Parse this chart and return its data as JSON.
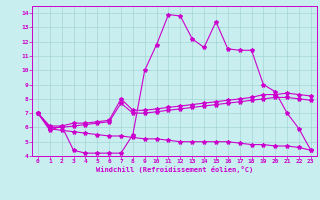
{
  "xlabel": "Windchill (Refroidissement éolien,°C)",
  "background_color": "#c8eef0",
  "line_color": "#cc00cc",
  "xlim": [
    -0.5,
    23.5
  ],
  "ylim": [
    4,
    14.5
  ],
  "xticks": [
    0,
    1,
    2,
    3,
    4,
    5,
    6,
    7,
    8,
    9,
    10,
    11,
    12,
    13,
    14,
    15,
    16,
    17,
    18,
    19,
    20,
    21,
    22,
    23
  ],
  "yticks": [
    4,
    5,
    6,
    7,
    8,
    9,
    10,
    11,
    12,
    13,
    14
  ],
  "series1_x": [
    0,
    1,
    2,
    3,
    4,
    5,
    6,
    7,
    8,
    9,
    10,
    11,
    12,
    13,
    14,
    15,
    16,
    17,
    18,
    19,
    20,
    21,
    22,
    23
  ],
  "series1_y": [
    7.0,
    5.8,
    6.1,
    4.4,
    4.2,
    4.2,
    4.2,
    4.2,
    5.5,
    10.0,
    11.8,
    13.9,
    13.8,
    12.2,
    11.6,
    13.4,
    11.5,
    11.4,
    11.4,
    9.0,
    8.5,
    7.0,
    5.9,
    4.4
  ],
  "series2_x": [
    0,
    1,
    2,
    3,
    4,
    5,
    6,
    7,
    8,
    9,
    10,
    11,
    12,
    13,
    14,
    15,
    16,
    17,
    18,
    19,
    20,
    21,
    22,
    23
  ],
  "series2_y": [
    7.0,
    6.1,
    6.1,
    6.3,
    6.3,
    6.4,
    6.5,
    8.0,
    7.2,
    7.2,
    7.3,
    7.4,
    7.5,
    7.6,
    7.7,
    7.8,
    7.9,
    8.0,
    8.1,
    8.3,
    8.3,
    8.4,
    8.3,
    8.2
  ],
  "series3_x": [
    0,
    1,
    2,
    3,
    4,
    5,
    6,
    7,
    8,
    9,
    10,
    11,
    12,
    13,
    14,
    15,
    16,
    17,
    18,
    19,
    20,
    21,
    22,
    23
  ],
  "series3_y": [
    7.0,
    6.0,
    6.0,
    6.1,
    6.2,
    6.3,
    6.4,
    7.7,
    7.0,
    7.0,
    7.1,
    7.2,
    7.3,
    7.4,
    7.5,
    7.6,
    7.7,
    7.8,
    7.9,
    8.0,
    8.1,
    8.1,
    8.0,
    7.9
  ],
  "series4_x": [
    0,
    1,
    2,
    3,
    4,
    5,
    6,
    7,
    8,
    9,
    10,
    11,
    12,
    13,
    14,
    15,
    16,
    17,
    18,
    19,
    20,
    21,
    22,
    23
  ],
  "series4_y": [
    7.0,
    5.9,
    5.8,
    5.7,
    5.6,
    5.5,
    5.4,
    5.4,
    5.3,
    5.2,
    5.2,
    5.1,
    5.0,
    5.0,
    5.0,
    5.0,
    5.0,
    4.9,
    4.8,
    4.8,
    4.7,
    4.7,
    4.6,
    4.4
  ]
}
